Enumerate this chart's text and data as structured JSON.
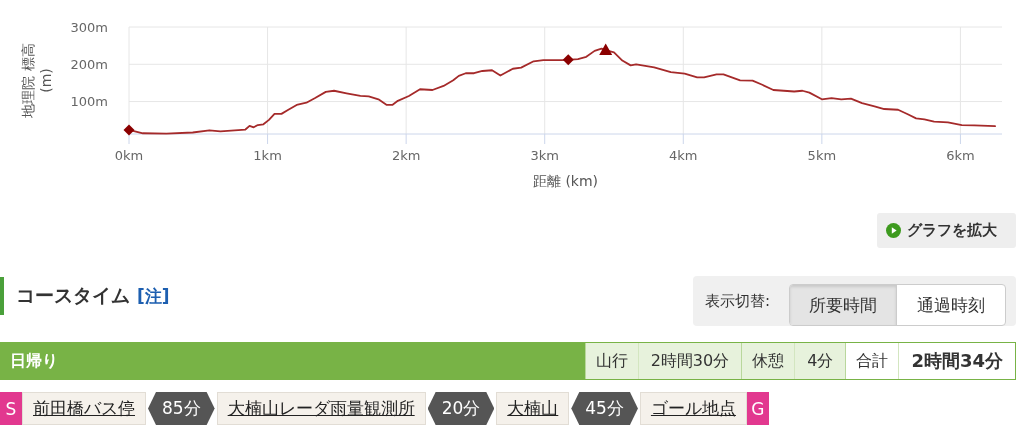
{
  "chart_data": [
    {
      "type": "line",
      "xlabel": "距離 (km)",
      "ylabel": "地理院 標高\n(m)",
      "xlim": [
        0,
        6.3
      ],
      "xticks": [
        {
          "value": 0,
          "label": "0km"
        },
        {
          "value": 1,
          "label": "1km"
        },
        {
          "value": 2,
          "label": "2km"
        },
        {
          "value": 3,
          "label": "3km"
        },
        {
          "value": 4,
          "label": "4km"
        },
        {
          "value": 5,
          "label": "5km"
        },
        {
          "value": 6,
          "label": "6km"
        }
      ],
      "ylim": [
        13,
        300
      ],
      "yticks": [
        {
          "value": 100,
          "label": "100m"
        },
        {
          "value": 200,
          "label": "200m"
        },
        {
          "value": 300,
          "label": "300m"
        }
      ],
      "grid": true,
      "series": [
        {
          "type": "line",
          "color": "#a52a2a",
          "marker": "none",
          "x": [
            0,
            0.1,
            0.27,
            0.46,
            0.58,
            0.66,
            0.84,
            0.87,
            0.9,
            0.93,
            0.97,
            1.01,
            1.05,
            1.1,
            1.15,
            1.21,
            1.28,
            1.34,
            1.42,
            1.48,
            1.57,
            1.67,
            1.73,
            1.8,
            1.86,
            1.9,
            1.94,
            2.02,
            2.1,
            2.19,
            2.27,
            2.34,
            2.38,
            2.43,
            2.49,
            2.55,
            2.62,
            2.68,
            2.71,
            2.77,
            2.83,
            2.92,
            2.99,
            3.12,
            3.17,
            3.24,
            3.3,
            3.36,
            3.41,
            3.44,
            3.5,
            3.56,
            3.62,
            3.66,
            3.79,
            3.91,
            4.01,
            4.1,
            4.15,
            4.24,
            4.29,
            4.41,
            4.5,
            4.57,
            4.65,
            4.8,
            4.86,
            4.91,
            5.0,
            5.07,
            5.14,
            5.21,
            5.29,
            5.38,
            5.45,
            5.55,
            5.62,
            5.68,
            5.74,
            5.81,
            5.91,
            6.01,
            6.1,
            6.25
          ],
          "values": [
            24,
            15,
            14,
            17,
            23,
            20,
            25,
            35,
            31,
            37,
            39,
            51,
            67,
            67,
            78,
            91,
            97,
            109,
            126,
            129,
            122,
            115,
            114,
            106,
            91,
            91,
            102,
            115,
            133,
            131,
            142,
            157,
            169,
            176,
            176,
            182,
            184,
            170,
            176,
            188,
            191,
            208,
            211,
            211,
            212,
            214,
            220,
            236,
            242,
            238,
            232,
            210,
            197,
            200,
            192,
            179,
            175,
            165,
            165,
            173,
            173,
            157,
            156,
            145,
            131,
            127,
            129,
            124,
            106,
            109,
            106,
            108,
            96,
            87,
            80,
            78,
            66,
            55,
            52,
            46,
            44,
            37,
            36,
            34
          ]
        },
        {
          "type": "scatter",
          "color": "#8b0000",
          "marker": "diamond",
          "x": [
            0,
            3.17
          ],
          "values": [
            24,
            212
          ]
        },
        {
          "type": "scatter",
          "color": "#8b0000",
          "marker": "triangle",
          "x": [
            3.44
          ],
          "values": [
            238
          ]
        }
      ]
    },
    {
      "type": "other",
      "title": "コースタイム",
      "annotations": [
        "グラフを拡大",
        "[注]",
        "表示切替:",
        "所要時間",
        "通過時刻",
        "日帰り",
        "山行",
        "2時間30分",
        "休憩",
        "4分",
        "合計",
        "2時間34分",
        "S",
        "前田橋バス停",
        "85分",
        "大楠山レーダ雨量観測所",
        "20分",
        "大楠山",
        "45分",
        "ゴール地点",
        "G"
      ]
    }
  ]
}
